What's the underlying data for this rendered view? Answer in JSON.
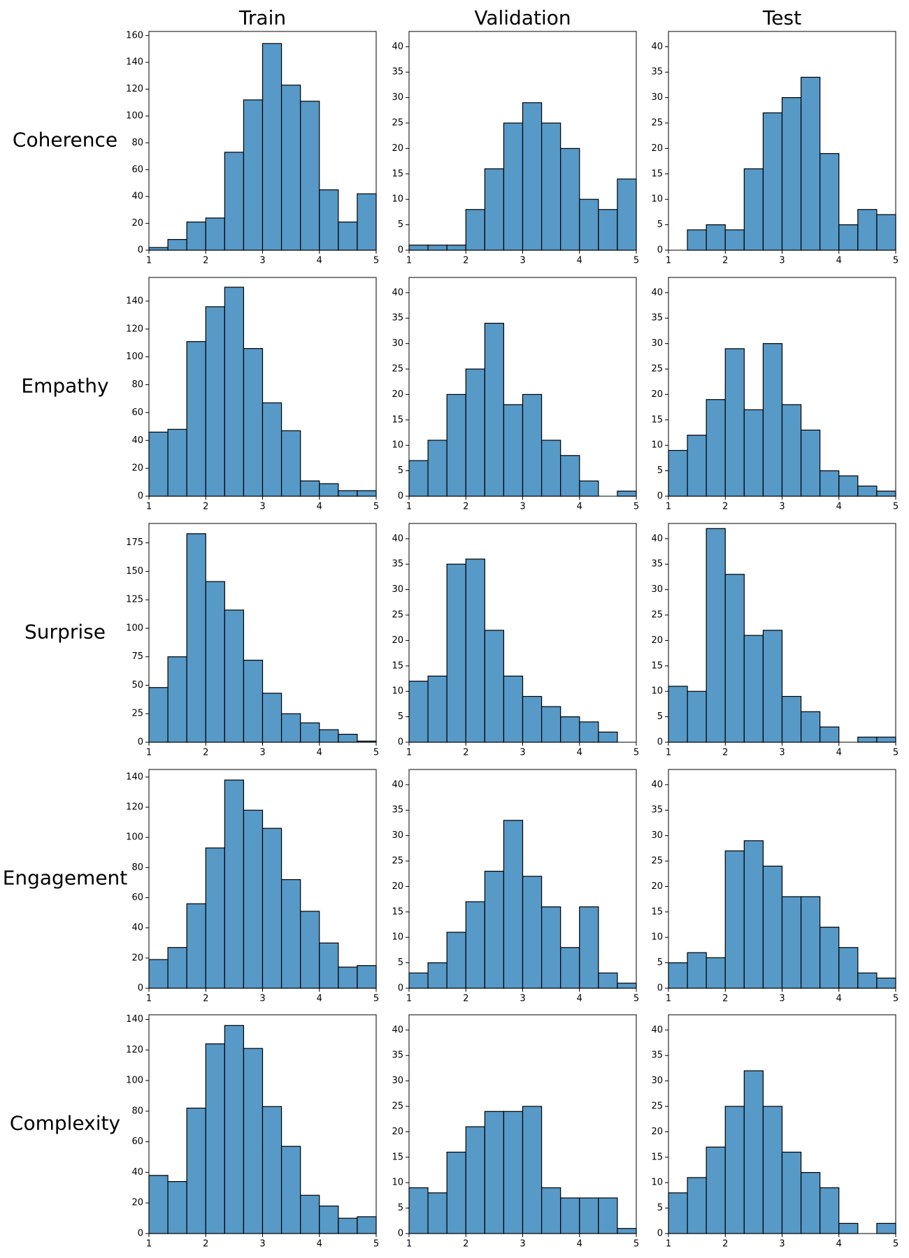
{
  "columns": [
    "Train",
    "Validation",
    "Test"
  ],
  "rows": [
    "Coherence",
    "Empathy",
    "Surprise",
    "Engagement",
    "Complexity"
  ],
  "chart_data": [
    {
      "type": "histogram",
      "bins": [
        1,
        1.3333,
        1.6667,
        2,
        2.3333,
        2.6667,
        3,
        3.3333,
        3.6667,
        4,
        4.3333,
        4.6667,
        5
      ],
      "values": [
        2,
        8,
        21,
        24,
        73,
        112,
        154,
        123,
        111,
        45,
        21,
        42
      ],
      "color": "#5799c7",
      "xlim": [
        1,
        5
      ],
      "xticks": [
        1,
        2,
        3,
        4,
        5
      ],
      "ylim": [
        0,
        163
      ],
      "yticks": [
        0,
        20,
        40,
        60,
        80,
        100,
        120,
        140,
        160
      ]
    },
    {
      "type": "histogram",
      "bins": [
        1,
        1.3333,
        1.6667,
        2,
        2.3333,
        2.6667,
        3,
        3.3333,
        3.6667,
        4,
        4.3333,
        4.6667,
        5
      ],
      "values": [
        1,
        1,
        1,
        8,
        16,
        25,
        29,
        25,
        20,
        10,
        8,
        14
      ],
      "color": "#5799c7",
      "xlim": [
        1,
        5
      ],
      "xticks": [
        1,
        2,
        3,
        4,
        5
      ],
      "ylim": [
        0,
        43
      ],
      "yticks": [
        0,
        5,
        10,
        15,
        20,
        25,
        30,
        35,
        40
      ]
    },
    {
      "type": "histogram",
      "bins": [
        1,
        1.3333,
        1.6667,
        2,
        2.3333,
        2.6667,
        3,
        3.3333,
        3.6667,
        4,
        4.3333,
        4.6667,
        5
      ],
      "values": [
        0,
        4,
        5,
        4,
        16,
        27,
        30,
        34,
        19,
        5,
        8,
        7
      ],
      "color": "#5799c7",
      "xlim": [
        1,
        5
      ],
      "xticks": [
        1,
        2,
        3,
        4,
        5
      ],
      "ylim": [
        0,
        43
      ],
      "yticks": [
        0,
        5,
        10,
        15,
        20,
        25,
        30,
        35,
        40
      ]
    },
    {
      "type": "histogram",
      "bins": [
        1,
        1.3333,
        1.6667,
        2,
        2.3333,
        2.6667,
        3,
        3.3333,
        3.6667,
        4,
        4.3333,
        4.6667,
        5
      ],
      "values": [
        46,
        48,
        111,
        136,
        150,
        106,
        67,
        47,
        11,
        9,
        4,
        4
      ],
      "color": "#5799c7",
      "xlim": [
        1,
        5
      ],
      "xticks": [
        1,
        2,
        3,
        4,
        5
      ],
      "ylim": [
        0,
        157
      ],
      "yticks": [
        0,
        20,
        40,
        60,
        80,
        100,
        120,
        140
      ]
    },
    {
      "type": "histogram",
      "bins": [
        1,
        1.3333,
        1.6667,
        2,
        2.3333,
        2.6667,
        3,
        3.3333,
        3.6667,
        4,
        4.3333,
        4.6667,
        5
      ],
      "values": [
        7,
        11,
        20,
        25,
        34,
        18,
        20,
        11,
        8,
        3,
        0,
        1
      ],
      "color": "#5799c7",
      "xlim": [
        1,
        5
      ],
      "xticks": [
        1,
        2,
        3,
        4,
        5
      ],
      "ylim": [
        0,
        43
      ],
      "yticks": [
        0,
        5,
        10,
        15,
        20,
        25,
        30,
        35,
        40
      ]
    },
    {
      "type": "histogram",
      "bins": [
        1,
        1.3333,
        1.6667,
        2,
        2.3333,
        2.6667,
        3,
        3.3333,
        3.6667,
        4,
        4.3333,
        4.6667,
        5
      ],
      "values": [
        9,
        12,
        19,
        29,
        17,
        30,
        18,
        13,
        5,
        4,
        2,
        1
      ],
      "color": "#5799c7",
      "xlim": [
        1,
        5
      ],
      "xticks": [
        1,
        2,
        3,
        4,
        5
      ],
      "ylim": [
        0,
        43
      ],
      "yticks": [
        0,
        5,
        10,
        15,
        20,
        25,
        30,
        35,
        40
      ]
    },
    {
      "type": "histogram",
      "bins": [
        1,
        1.3333,
        1.6667,
        2,
        2.3333,
        2.6667,
        3,
        3.3333,
        3.6667,
        4,
        4.3333,
        4.6667,
        5
      ],
      "values": [
        48,
        75,
        183,
        141,
        116,
        72,
        43,
        25,
        17,
        11,
        7,
        1
      ],
      "color": "#5799c7",
      "xlim": [
        1,
        5
      ],
      "xticks": [
        1,
        2,
        3,
        4,
        5
      ],
      "ylim": [
        0,
        192
      ],
      "yticks": [
        0,
        25,
        50,
        75,
        100,
        125,
        150,
        175
      ]
    },
    {
      "type": "histogram",
      "bins": [
        1,
        1.3333,
        1.6667,
        2,
        2.3333,
        2.6667,
        3,
        3.3333,
        3.6667,
        4,
        4.3333,
        4.6667,
        5
      ],
      "values": [
        12,
        13,
        35,
        36,
        22,
        13,
        9,
        7,
        5,
        4,
        2,
        0
      ],
      "color": "#5799c7",
      "xlim": [
        1,
        5
      ],
      "xticks": [
        1,
        2,
        3,
        4,
        5
      ],
      "ylim": [
        0,
        43
      ],
      "yticks": [
        0,
        5,
        10,
        15,
        20,
        25,
        30,
        35,
        40
      ]
    },
    {
      "type": "histogram",
      "bins": [
        1,
        1.3333,
        1.6667,
        2,
        2.3333,
        2.6667,
        3,
        3.3333,
        3.6667,
        4,
        4.3333,
        4.6667,
        5
      ],
      "values": [
        11,
        10,
        42,
        33,
        21,
        22,
        9,
        6,
        3,
        0,
        1,
        1
      ],
      "color": "#5799c7",
      "xlim": [
        1,
        5
      ],
      "xticks": [
        1,
        2,
        3,
        4,
        5
      ],
      "ylim": [
        0,
        43
      ],
      "yticks": [
        0,
        5,
        10,
        15,
        20,
        25,
        30,
        35,
        40
      ]
    },
    {
      "type": "histogram",
      "bins": [
        1,
        1.3333,
        1.6667,
        2,
        2.3333,
        2.6667,
        3,
        3.3333,
        3.6667,
        4,
        4.3333,
        4.6667,
        5
      ],
      "values": [
        19,
        27,
        56,
        93,
        138,
        118,
        106,
        72,
        51,
        30,
        14,
        15
      ],
      "color": "#5799c7",
      "xlim": [
        1,
        5
      ],
      "xticks": [
        1,
        2,
        3,
        4,
        5
      ],
      "ylim": [
        0,
        145
      ],
      "yticks": [
        0,
        20,
        40,
        60,
        80,
        100,
        120,
        140
      ]
    },
    {
      "type": "histogram",
      "bins": [
        1,
        1.3333,
        1.6667,
        2,
        2.3333,
        2.6667,
        3,
        3.3333,
        3.6667,
        4,
        4.3333,
        4.6667,
        5
      ],
      "values": [
        3,
        5,
        11,
        17,
        23,
        33,
        22,
        16,
        8,
        16,
        3,
        1
      ],
      "color": "#5799c7",
      "xlim": [
        1,
        5
      ],
      "xticks": [
        1,
        2,
        3,
        4,
        5
      ],
      "ylim": [
        0,
        43
      ],
      "yticks": [
        0,
        5,
        10,
        15,
        20,
        25,
        30,
        35,
        40
      ]
    },
    {
      "type": "histogram",
      "bins": [
        1,
        1.3333,
        1.6667,
        2,
        2.3333,
        2.6667,
        3,
        3.3333,
        3.6667,
        4,
        4.3333,
        4.6667,
        5
      ],
      "values": [
        5,
        7,
        6,
        27,
        29,
        24,
        18,
        18,
        12,
        8,
        3,
        2
      ],
      "color": "#5799c7",
      "xlim": [
        1,
        5
      ],
      "xticks": [
        1,
        2,
        3,
        4,
        5
      ],
      "ylim": [
        0,
        43
      ],
      "yticks": [
        0,
        5,
        10,
        15,
        20,
        25,
        30,
        35,
        40
      ]
    },
    {
      "type": "histogram",
      "bins": [
        1,
        1.3333,
        1.6667,
        2,
        2.3333,
        2.6667,
        3,
        3.3333,
        3.6667,
        4,
        4.3333,
        4.6667,
        5
      ],
      "values": [
        38,
        34,
        82,
        124,
        136,
        121,
        83,
        57,
        25,
        18,
        10,
        11
      ],
      "color": "#5799c7",
      "xlim": [
        1,
        5
      ],
      "xticks": [
        1,
        2,
        3,
        4,
        5
      ],
      "ylim": [
        0,
        143
      ],
      "yticks": [
        0,
        20,
        40,
        60,
        80,
        100,
        120,
        140
      ]
    },
    {
      "type": "histogram",
      "bins": [
        1,
        1.3333,
        1.6667,
        2,
        2.3333,
        2.6667,
        3,
        3.3333,
        3.6667,
        4,
        4.3333,
        4.6667,
        5
      ],
      "values": [
        9,
        8,
        16,
        21,
        24,
        24,
        25,
        9,
        7,
        7,
        7,
        1
      ],
      "color": "#5799c7",
      "xlim": [
        1,
        5
      ],
      "xticks": [
        1,
        2,
        3,
        4,
        5
      ],
      "ylim": [
        0,
        43
      ],
      "yticks": [
        0,
        5,
        10,
        15,
        20,
        25,
        30,
        35,
        40
      ]
    },
    {
      "type": "histogram",
      "bins": [
        1,
        1.3333,
        1.6667,
        2,
        2.3333,
        2.6667,
        3,
        3.3333,
        3.6667,
        4,
        4.3333,
        4.6667,
        5
      ],
      "values": [
        8,
        11,
        17,
        25,
        32,
        25,
        16,
        12,
        9,
        2,
        0,
        2
      ],
      "color": "#5799c7",
      "xlim": [
        1,
        5
      ],
      "xticks": [
        1,
        2,
        3,
        4,
        5
      ],
      "ylim": [
        0,
        43
      ],
      "yticks": [
        0,
        5,
        10,
        15,
        20,
        25,
        30,
        35,
        40
      ]
    }
  ]
}
